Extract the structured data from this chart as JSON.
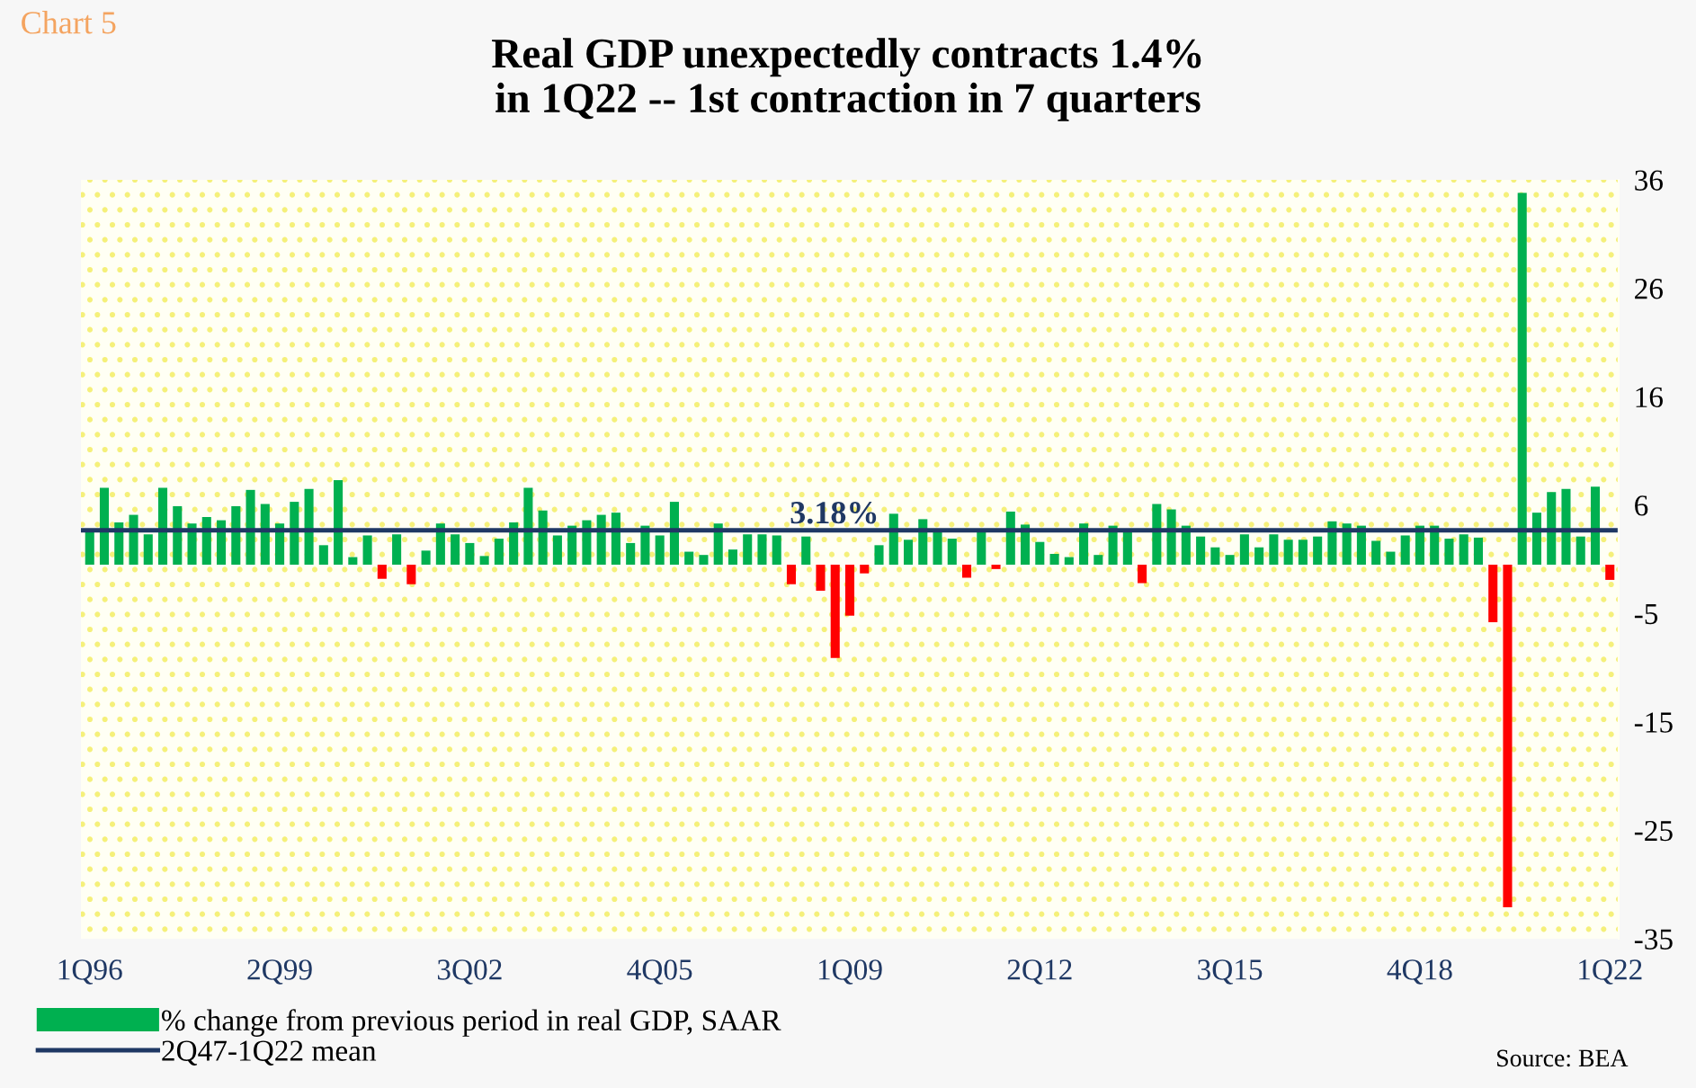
{
  "chart_data": {
    "type": "bar",
    "title": "Real GDP unexpectedly contracts 1.4%\nin 1Q22 -- 1st contraction in 7 quarters",
    "categories": [
      "1Q96",
      null,
      null,
      null,
      null,
      null,
      null,
      null,
      null,
      null,
      null,
      null,
      null,
      "2Q99",
      null,
      null,
      null,
      null,
      null,
      null,
      null,
      null,
      null,
      null,
      null,
      null,
      "3Q02",
      null,
      null,
      null,
      null,
      null,
      null,
      null,
      null,
      null,
      null,
      null,
      null,
      "4Q05",
      null,
      null,
      null,
      null,
      null,
      null,
      null,
      null,
      null,
      null,
      null,
      null,
      "1Q09",
      null,
      null,
      null,
      null,
      null,
      null,
      null,
      null,
      null,
      null,
      null,
      null,
      "2Q12",
      null,
      null,
      null,
      null,
      null,
      null,
      null,
      null,
      null,
      null,
      null,
      null,
      "3Q15",
      null,
      null,
      null,
      null,
      null,
      null,
      null,
      null,
      null,
      null,
      null,
      null,
      "4Q18",
      null,
      null,
      null,
      null,
      null,
      null,
      null,
      null,
      null,
      null,
      null,
      null,
      "1Q22"
    ],
    "series": [
      {
        "name": "% change from previous period in real GDP, SAAR",
        "color": "#00b050",
        "values": [
          3.2,
          7.1,
          3.9,
          4.6,
          2.8,
          7.1,
          5.4,
          3.8,
          4.4,
          4.1,
          5.4,
          6.9,
          5.6,
          3.8,
          5.8,
          7.0,
          1.8,
          7.8,
          0.7,
          2.7,
          -1.3,
          2.8,
          -1.8,
          1.3,
          3.8,
          2.8,
          2.0,
          0.8,
          2.4,
          3.9,
          7.1,
          5.0,
          2.7,
          3.6,
          4.1,
          4.6,
          4.8,
          2.0,
          3.6,
          2.7,
          5.8,
          1.2,
          0.9,
          3.8,
          1.4,
          2.8,
          2.8,
          2.7,
          -1.8,
          2.6,
          -2.4,
          -8.6,
          -4.7,
          -0.8,
          1.8,
          4.7,
          2.3,
          4.2,
          3.3,
          2.4,
          -1.2,
          3.1,
          -0.4,
          4.9,
          3.7,
          2.1,
          1.0,
          0.7,
          3.8,
          0.9,
          3.6,
          3.3,
          -1.7,
          5.6,
          5.1,
          3.6,
          2.6,
          1.6,
          0.9,
          2.8,
          1.6,
          2.8,
          2.3,
          2.3,
          2.6,
          4.0,
          3.8,
          3.6,
          2.2,
          1.2,
          2.7,
          3.6,
          3.6,
          2.4,
          2.8,
          2.5,
          -5.3,
          -31.6,
          34.3,
          4.8,
          6.7,
          7.0,
          2.6,
          7.2,
          -1.4
        ],
        "colors": [
          "#00b050",
          "#00b050",
          "#00b050",
          "#00b050",
          "#00b050",
          "#00b050",
          "#00b050",
          "#00b050",
          "#00b050",
          "#00b050",
          "#00b050",
          "#00b050",
          "#00b050",
          "#00b050",
          "#00b050",
          "#00b050",
          "#00b050",
          "#00b050",
          "#00b050",
          "#00b050",
          "#ff0000",
          "#00b050",
          "#ff0000",
          "#00b050",
          "#00b050",
          "#00b050",
          "#00b050",
          "#00b050",
          "#00b050",
          "#00b050",
          "#00b050",
          "#00b050",
          "#00b050",
          "#00b050",
          "#00b050",
          "#00b050",
          "#00b050",
          "#00b050",
          "#00b050",
          "#00b050",
          "#00b050",
          "#00b050",
          "#00b050",
          "#00b050",
          "#00b050",
          "#00b050",
          "#00b050",
          "#00b050",
          "#ff0000",
          "#00b050",
          "#ff0000",
          "#ff0000",
          "#ff0000",
          "#ff0000",
          "#00b050",
          "#00b050",
          "#00b050",
          "#00b050",
          "#00b050",
          "#00b050",
          "#ff0000",
          "#00b050",
          "#ff0000",
          "#00b050",
          "#00b050",
          "#00b050",
          "#00b050",
          "#00b050",
          "#00b050",
          "#00b050",
          "#00b050",
          "#00b050",
          "#ff0000",
          "#00b050",
          "#00b050",
          "#00b050",
          "#00b050",
          "#00b050",
          "#00b050",
          "#00b050",
          "#00b050",
          "#00b050",
          "#00b050",
          "#00b050",
          "#00b050",
          "#00b050",
          "#00b050",
          "#00b050",
          "#00b050",
          "#00b050",
          "#00b050",
          "#00b050",
          "#00b050",
          "#00b050",
          "#00b050",
          "#00b050",
          "#ff0000",
          "#ff0000",
          "#00b050",
          "#00b050",
          "#00b050",
          "#00b050",
          "#00b050",
          "#00b050",
          "#ff0000"
        ]
      }
    ],
    "ylim": [
      -34.5,
      35.5
    ],
    "yticks": [
      {
        "value": 35.5,
        "label": "36"
      },
      {
        "value": 25.5,
        "label": "26"
      },
      {
        "value": 15.5,
        "label": "16"
      },
      {
        "value": 5.5,
        "label": "6"
      },
      {
        "value": -4.5,
        "label": "-5"
      },
      {
        "value": -14.5,
        "label": "-15"
      },
      {
        "value": -24.5,
        "label": "-25"
      },
      {
        "value": -34.5,
        "label": "-35"
      }
    ],
    "ref_lines": [
      {
        "axis": "y",
        "value": 3.18,
        "label": "2Q47-1Q22 mean",
        "color": "#1f3864",
        "line_style": "solid"
      }
    ],
    "annotations": [
      "Chart 5",
      {
        "text": "3.18%",
        "y": 3.18
      },
      "Source: BEA"
    ],
    "grid": false,
    "legend": "bottom left"
  }
}
